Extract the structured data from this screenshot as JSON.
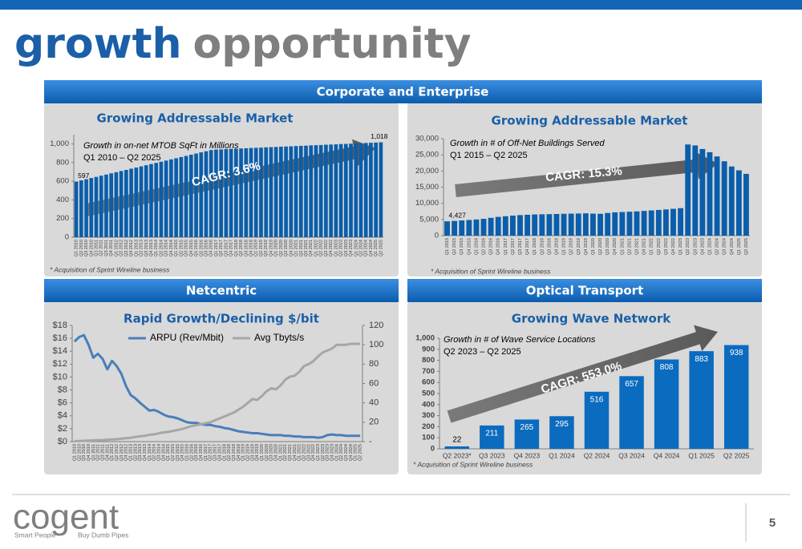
{
  "header": {
    "title_a": "growth",
    "title_b": "opportunity"
  },
  "sections": [
    "Corporate and Enterprise",
    "Netcentric",
    "Optical Transport"
  ],
  "footer": {
    "logo": "cogent",
    "tagline_a": "Smart People",
    "tagline_b": "Buy Dumb Pipes",
    "page": "5"
  },
  "chart_data": [
    {
      "type": "bar",
      "title": "Growing Addressable Market",
      "note": "Growth in on-net MTOB SqFt in Millions",
      "period": "Q1 2010 – Q2 2025",
      "cagr": "CAGR: 3.6%",
      "footnote": "* Acquisition of Sprint Wireline business",
      "color": "#0a5eab",
      "categories": [
        "Q1 2010",
        "Q2 2010",
        "Q3 2010",
        "Q4 2010",
        "Q1 2011",
        "Q2 2011",
        "Q3 2011",
        "Q4 2011",
        "Q1 2012",
        "Q2 2012",
        "Q3 2012",
        "Q4 2012",
        "Q1 2013",
        "Q2 2013",
        "Q3 2013",
        "Q4 2013",
        "Q1 2014",
        "Q2 2014",
        "Q3 2014",
        "Q4 2014",
        "Q1 2015",
        "Q2 2015",
        "Q3 2015",
        "Q4 2015",
        "Q1 2016",
        "Q2 2016",
        "Q3 2016",
        "Q4 2016",
        "Q1 2017",
        "Q2 2017",
        "Q3 2017",
        "Q4 2017",
        "Q1 2018",
        "Q2 2018",
        "Q3 2018",
        "Q4 2018",
        "Q1 2019",
        "Q2 2019",
        "Q3 2019",
        "Q4 2019",
        "Q1 2020",
        "Q2 2020",
        "Q3 2020",
        "Q4 2020",
        "Q1 2021",
        "Q2 2021",
        "Q3 2021",
        "Q4 2021",
        "Q1 2022",
        "Q2 2022",
        "Q3 2022",
        "Q4 2022",
        "Q1 2023",
        "Q2 2023",
        "Q3 2023",
        "Q4 2023",
        "Q1 2024",
        "Q2 2024",
        "Q3 2024",
        "Q4 2024",
        "Q1 2025",
        "Q2 2025"
      ],
      "values": [
        597,
        610,
        622,
        635,
        647,
        660,
        672,
        685,
        697,
        710,
        722,
        735,
        747,
        760,
        772,
        785,
        797,
        810,
        822,
        835,
        847,
        860,
        872,
        885,
        897,
        910,
        922,
        935,
        940,
        942,
        945,
        947,
        949,
        952,
        954,
        957,
        959,
        961,
        964,
        966,
        968,
        971,
        973,
        975,
        978,
        980,
        982,
        985,
        987,
        989,
        992,
        994,
        996,
        999,
        1001,
        1003,
        1006,
        1008,
        1011,
        1013,
        1015,
        1018
      ],
      "value_labels": [
        "597",
        null,
        null,
        null,
        null,
        null,
        null,
        null,
        null,
        null,
        null,
        null,
        null,
        null,
        null,
        null,
        null,
        null,
        null,
        null,
        null,
        null,
        null,
        null,
        null,
        null,
        null,
        null,
        null,
        null,
        null,
        null,
        null,
        null,
        null,
        null,
        null,
        null,
        null,
        null,
        null,
        null,
        null,
        null,
        null,
        null,
        null,
        null,
        null,
        null,
        null,
        null,
        null,
        null,
        null,
        null,
        null,
        null,
        null,
        null,
        null,
        "1,018"
      ],
      "ylim": [
        0,
        1100
      ],
      "yticks": [
        0,
        200,
        400,
        600,
        800,
        {
          "value": 1000,
          "label": "1,000"
        }
      ],
      "grid": false
    },
    {
      "type": "bar",
      "title": "Growing Addressable Market",
      "note": "Growth in # of Off-Net Buildings Served",
      "period": "Q1 2015 – Q2 2025",
      "cagr": "CAGR: 15.3%",
      "footnote": "* Acquisition of Sprint Wireline business",
      "color": "#0a5eab",
      "categories": [
        "Q1 2015",
        "Q2 2015",
        "Q3 2015",
        "Q4 2015",
        "Q1 2016",
        "Q2 2016",
        "Q3 2016",
        "Q4 2016",
        "Q1 2017",
        "Q2 2017",
        "Q3 2017",
        "Q4 2017",
        "Q1 2018",
        "Q2 2018",
        "Q3 2018",
        "Q4 2018",
        "Q1 2019",
        "Q2 2019",
        "Q3 2019",
        "Q4 2019",
        "Q1 2020",
        "Q2 2020",
        "Q3 2020",
        "Q4 2020",
        "Q1 2021",
        "Q2 2021",
        "Q3 2021",
        "Q4 2021",
        "Q1 2022",
        "Q2 2022",
        "Q3 2022",
        "Q4 2022",
        "Q1 2023",
        "Q2 2023",
        "Q3 2023",
        "Q4 2023",
        "Q1 2024",
        "Q2 2024",
        "Q3 2024",
        "Q4 2024",
        "Q1 2025",
        "Q2 2025"
      ],
      "values": [
        4427,
        4550,
        4700,
        4850,
        5000,
        5200,
        5500,
        5800,
        6000,
        6200,
        6350,
        6450,
        6550,
        6600,
        6650,
        6700,
        6750,
        6800,
        6850,
        6900,
        6800,
        6750,
        7000,
        7200,
        7300,
        7400,
        7500,
        7650,
        7800,
        7950,
        8100,
        8300,
        8500,
        28200,
        27900,
        26800,
        25800,
        24500,
        23000,
        21400,
        20200,
        19100
      ],
      "value_labels": [
        "4,427",
        null,
        null,
        null,
        null,
        null,
        null,
        null,
        null,
        null,
        null,
        null,
        null,
        null,
        null,
        null,
        null,
        null,
        null,
        null,
        null,
        null,
        null,
        null,
        null,
        null,
        null,
        null,
        null,
        null,
        null,
        null,
        null,
        null,
        null,
        null,
        null,
        null,
        null,
        null,
        null,
        null
      ],
      "ylim": [
        0,
        30000
      ],
      "yticks": [
        0,
        {
          "value": 5000,
          "label": "5,000"
        },
        {
          "value": 10000,
          "label": "10,000"
        },
        {
          "value": 15000,
          "label": "15,000"
        },
        {
          "value": 20000,
          "label": "20,000"
        },
        {
          "value": 25000,
          "label": "25,000"
        },
        {
          "value": 30000,
          "label": "30,000"
        }
      ],
      "grid": false
    },
    {
      "type": "line",
      "title": "Rapid Growth/Declining $/bit",
      "legend": "top",
      "categories": [
        "Q1 2010",
        "Q2 2010",
        "Q3 2010",
        "Q4 2010",
        "Q1 2011",
        "Q2 2011",
        "Q3 2011",
        "Q4 2011",
        "Q1 2012",
        "Q2 2012",
        "Q3 2012",
        "Q4 2012",
        "Q1 2013",
        "Q2 2013",
        "Q3 2013",
        "Q4 2013",
        "Q1 2014",
        "Q2 2014",
        "Q3 2014",
        "Q4 2014",
        "Q1 2015",
        "Q2 2015",
        "Q3 2015",
        "Q4 2015",
        "Q1 2016",
        "Q2 2016",
        "Q3 2016",
        "Q4 2016",
        "Q1 2017",
        "Q2 2017",
        "Q3 2017",
        "Q4 2017",
        "Q1 2018",
        "Q2 2018",
        "Q3 2018",
        "Q4 2018",
        "Q1 2019",
        "Q2 2019",
        "Q3 2019",
        "Q4 2019",
        "Q1 2020",
        "Q2 2020",
        "Q3 2020",
        "Q4 2020",
        "Q1 2021",
        "Q2 2021",
        "Q3 2021",
        "Q4 2021",
        "Q1 2022",
        "Q2 2022",
        "Q3 2022",
        "Q4 2022",
        "Q1 2023",
        "Q2 2023",
        "Q3 2023",
        "Q4 2023",
        "Q1 2024",
        "Q2 2024",
        "Q3 2024",
        "Q4 2024",
        "Q1 2025",
        "Q2 2025"
      ],
      "series": [
        {
          "name": "ARPU (Rev/Mbit)",
          "color": "#4a7ebb",
          "values": [
            15.5,
            16.2,
            16.5,
            15.0,
            13.0,
            13.6,
            12.8,
            11.2,
            12.5,
            11.7,
            10.5,
            8.6,
            7.2,
            6.7,
            6.0,
            5.4,
            4.8,
            4.9,
            4.6,
            4.2,
            3.9,
            3.8,
            3.6,
            3.3,
            3.0,
            2.9,
            2.9,
            2.7,
            2.6,
            2.6,
            2.4,
            2.3,
            2.1,
            2.0,
            1.8,
            1.6,
            1.5,
            1.4,
            1.3,
            1.3,
            1.2,
            1.1,
            1.0,
            1.0,
            1.0,
            0.9,
            0.9,
            0.8,
            0.8,
            0.7,
            0.7,
            0.7,
            0.6,
            0.7,
            1.0,
            1.1,
            1.0,
            1.0,
            0.9,
            0.9,
            0.9,
            0.9
          ]
        },
        {
          "name": "Avg Tbyts/s",
          "color": "#a6a6a6",
          "axis": "y2",
          "values": [
            0.5,
            0.6,
            0.8,
            1,
            1.2,
            1.4,
            1.6,
            2,
            2.2,
            2.5,
            3,
            3.5,
            4,
            4.8,
            5.5,
            6,
            7,
            7.5,
            8.5,
            9.5,
            10,
            11,
            12,
            13,
            14.5,
            16,
            17,
            18,
            19,
            20,
            22,
            24,
            26,
            28,
            30,
            33,
            36,
            40,
            44,
            43,
            47,
            52,
            55,
            54,
            58,
            64,
            67,
            68,
            72,
            78,
            80,
            83,
            88,
            92,
            94,
            96,
            100,
            100,
            100,
            101,
            101,
            101
          ]
        }
      ],
      "ylim": [
        0,
        18
      ],
      "yticks": [
        {
          "value": 0,
          "label": "$0"
        },
        {
          "value": 2,
          "label": "$2"
        },
        {
          "value": 4,
          "label": "$4"
        },
        {
          "value": 6,
          "label": "$6"
        },
        {
          "value": 8,
          "label": "$8"
        },
        {
          "value": 10,
          "label": "$10"
        },
        {
          "value": 12,
          "label": "$12"
        },
        {
          "value": 14,
          "label": "$14"
        },
        {
          "value": 16,
          "label": "$16"
        },
        {
          "value": 18,
          "label": "$18"
        }
      ],
      "y2lim": [
        0,
        120
      ],
      "y2ticks": [
        {
          "value": 0,
          "label": "-"
        },
        20,
        40,
        60,
        80,
        100,
        120
      ],
      "grid": false
    },
    {
      "type": "bar",
      "title": "Growing Wave Network",
      "note": "Growth in # of Wave Service Locations",
      "period": "Q2 2023 – Q2 2025",
      "cagr": "CAGR: 553.0%",
      "footnote": "* Acquisition of Sprint Wireline business",
      "color": "#0b6bbf",
      "data_labels": true,
      "categories": [
        "Q2 2023*",
        "Q3 2023",
        "Q4 2023",
        "Q1 2024",
        "Q2 2024",
        "Q3 2024",
        "Q4 2024",
        "Q1 2025",
        "Q2 2025"
      ],
      "values": [
        22,
        211,
        265,
        295,
        516,
        657,
        808,
        883,
        938
      ],
      "ylim": [
        0,
        1000
      ],
      "yticks": [
        0,
        100,
        200,
        300,
        400,
        500,
        600,
        700,
        800,
        900,
        {
          "value": 1000,
          "label": "1,000"
        }
      ],
      "grid": false
    }
  ]
}
